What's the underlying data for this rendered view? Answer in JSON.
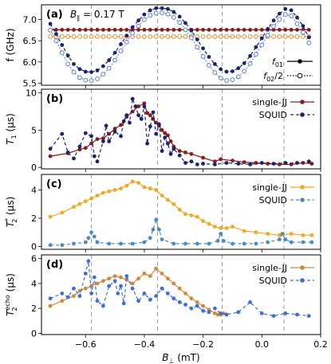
{
  "chart_data": [
    {
      "type": "line",
      "panel_label": "(a)",
      "annotation": "B ∥ = 0.17 T",
      "annotation_main": "B",
      "annotation_sub": "∥",
      "annotation_rest": " = 0.17 T",
      "ylabel": "f (GHz)",
      "xlim": [
        -0.75,
        0.2
      ],
      "ylim": [
        5.45,
        7.35
      ],
      "yticks": [
        5.5,
        6.0,
        6.5,
        7.0
      ],
      "xticks": [
        -0.6,
        -0.4,
        -0.2,
        0.0,
        0.2
      ],
      "legend_placement": "bottom-right",
      "series": [
        {
          "name": "f01",
          "name_main": "f",
          "name_sub": "01",
          "color": "#8b1a1a",
          "marker": "filled",
          "dash": "solid",
          "x": [
            -0.72,
            -0.7,
            -0.68,
            -0.66,
            -0.64,
            -0.62,
            -0.6,
            -0.58,
            -0.56,
            -0.54,
            -0.52,
            -0.5,
            -0.48,
            -0.46,
            -0.44,
            -0.42,
            -0.4,
            -0.38,
            -0.36,
            -0.34,
            -0.32,
            -0.3,
            -0.28,
            -0.26,
            -0.24,
            -0.22,
            -0.2,
            -0.18,
            -0.16,
            -0.14,
            -0.12,
            -0.1,
            -0.08,
            -0.06,
            -0.04,
            -0.02,
            0.0,
            0.02,
            0.04,
            0.06,
            0.08,
            0.1,
            0.12,
            0.14,
            0.16
          ],
          "y": [
            6.76,
            6.76,
            6.76,
            6.76,
            6.76,
            6.76,
            6.76,
            6.76,
            6.76,
            6.76,
            6.76,
            6.76,
            6.76,
            6.76,
            6.76,
            6.76,
            6.76,
            6.76,
            6.76,
            6.76,
            6.76,
            6.76,
            6.76,
            6.76,
            6.76,
            6.76,
            6.76,
            6.76,
            6.76,
            6.76,
            6.76,
            6.76,
            6.76,
            6.76,
            6.76,
            6.76,
            6.76,
            6.76,
            6.76,
            6.76,
            6.76,
            6.76,
            6.76,
            6.76,
            6.76
          ]
        },
        {
          "name": "f02/2",
          "name_main": "f",
          "name_sub": "02",
          "name_rest": "/2",
          "color": "#e8892a",
          "marker": "open",
          "dash": "dotted",
          "x": [
            -0.72,
            -0.7,
            -0.68,
            -0.66,
            -0.64,
            -0.62,
            -0.6,
            -0.58,
            -0.56,
            -0.54,
            -0.52,
            -0.5,
            -0.48,
            -0.46,
            -0.44,
            -0.42,
            -0.4,
            -0.38,
            -0.36,
            -0.34,
            -0.32,
            -0.3,
            -0.28,
            -0.26,
            -0.24,
            -0.22,
            -0.2,
            -0.18,
            -0.16,
            -0.14,
            -0.12,
            -0.1,
            -0.08,
            -0.06,
            -0.04,
            -0.02,
            0.0,
            0.02,
            0.04,
            0.06,
            0.08,
            0.1,
            0.12,
            0.14,
            0.16
          ],
          "y": [
            6.6,
            6.6,
            6.6,
            6.6,
            6.6,
            6.6,
            6.6,
            6.6,
            6.6,
            6.6,
            6.6,
            6.6,
            6.6,
            6.6,
            6.6,
            6.6,
            6.6,
            6.6,
            6.6,
            6.6,
            6.6,
            6.6,
            6.6,
            6.6,
            6.6,
            6.6,
            6.6,
            6.6,
            6.6,
            6.6,
            6.6,
            6.6,
            6.6,
            6.6,
            6.6,
            6.6,
            6.6,
            6.6,
            6.6,
            6.6,
            6.6,
            6.6,
            6.6,
            6.6,
            6.6
          ]
        },
        {
          "name": "SQUID f01",
          "color": "#1a2370",
          "marker": "filled",
          "dash": "dashed",
          "x": [
            -0.72,
            -0.7,
            -0.68,
            -0.66,
            -0.64,
            -0.62,
            -0.6,
            -0.58,
            -0.56,
            -0.54,
            -0.52,
            -0.5,
            -0.48,
            -0.46,
            -0.44,
            -0.42,
            -0.4,
            -0.38,
            -0.36,
            -0.34,
            -0.32,
            -0.3,
            -0.28,
            -0.26,
            -0.24,
            -0.22,
            -0.2,
            -0.18,
            -0.16,
            -0.14,
            -0.12,
            -0.1,
            -0.08,
            -0.06,
            -0.04,
            -0.02,
            0.0,
            0.02,
            0.04,
            0.06,
            0.08,
            0.1,
            0.12,
            0.14,
            0.16
          ],
          "y": [
            6.9,
            6.66,
            6.4,
            6.15,
            5.95,
            5.83,
            5.77,
            5.76,
            5.8,
            5.9,
            6.04,
            6.22,
            6.42,
            6.62,
            6.82,
            6.98,
            7.12,
            7.22,
            7.27,
            7.27,
            7.25,
            7.18,
            7.07,
            6.92,
            6.74,
            6.53,
            6.32,
            6.12,
            5.95,
            5.83,
            5.77,
            5.78,
            5.85,
            5.97,
            6.14,
            6.35,
            6.56,
            6.78,
            6.98,
            7.14,
            7.25,
            7.22,
            7.05,
            6.85,
            6.58
          ]
        },
        {
          "name": "SQUID f02/2",
          "color": "#5b7fd6",
          "marker": "open",
          "dash": "dotted",
          "x": [
            -0.72,
            -0.7,
            -0.68,
            -0.66,
            -0.64,
            -0.62,
            -0.6,
            -0.58,
            -0.56,
            -0.54,
            -0.52,
            -0.5,
            -0.48,
            -0.46,
            -0.44,
            -0.42,
            -0.4,
            -0.38,
            -0.36,
            -0.34,
            -0.32,
            -0.3,
            -0.28,
            -0.26,
            -0.24,
            -0.22,
            -0.2,
            -0.18,
            -0.16,
            -0.14,
            -0.12,
            -0.1,
            -0.08,
            -0.06,
            -0.04,
            -0.02,
            0.0,
            0.02,
            0.04,
            0.06,
            0.08,
            0.1,
            0.12,
            0.14,
            0.16
          ],
          "y": [
            6.75,
            6.5,
            6.22,
            5.95,
            5.76,
            5.63,
            5.57,
            5.56,
            5.6,
            5.71,
            5.85,
            6.04,
            6.26,
            6.47,
            6.68,
            6.85,
            7.0,
            7.1,
            7.15,
            7.16,
            7.13,
            7.05,
            6.93,
            6.76,
            6.57,
            6.35,
            6.13,
            5.92,
            5.75,
            5.62,
            5.56,
            5.58,
            5.65,
            5.78,
            5.96,
            6.18,
            6.4,
            6.63,
            6.84,
            7.01,
            7.12,
            7.09,
            6.9,
            6.7,
            6.45
          ]
        }
      ]
    },
    {
      "type": "line",
      "panel_label": "(b)",
      "ylabel": "T1 (μs)",
      "ylabel_main": "T",
      "ylabel_sub": "1",
      "ylabel_rest": " (μs)",
      "xlim": [
        -0.75,
        0.2
      ],
      "ylim": [
        -0.2,
        10.5
      ],
      "yticks": [
        0,
        5,
        10
      ],
      "legend_placement": "top-right",
      "series": [
        {
          "name": "single-JJ",
          "color": "#8b1a1a",
          "marker": "filled",
          "dash": "solid",
          "x": [
            -0.72,
            -0.66,
            -0.62,
            -0.6,
            -0.58,
            -0.56,
            -0.54,
            -0.52,
            -0.5,
            -0.48,
            -0.46,
            -0.44,
            -0.42,
            -0.4,
            -0.39,
            -0.38,
            -0.37,
            -0.36,
            -0.35,
            -0.34,
            -0.33,
            -0.32,
            -0.31,
            -0.3,
            -0.28,
            -0.26,
            -0.24,
            -0.2,
            -0.16,
            -0.14,
            -0.1,
            -0.06,
            -0.02,
            0.02,
            0.06,
            0.1,
            0.14,
            0.17
          ],
          "y": [
            1.5,
            1.9,
            2.4,
            2.6,
            3.2,
            3.8,
            3.9,
            4.5,
            5.2,
            5.7,
            6.8,
            7.5,
            8.2,
            8.6,
            7.3,
            7.0,
            6.5,
            6.0,
            5.6,
            5.0,
            4.6,
            4.3,
            3.5,
            2.8,
            2.2,
            2.0,
            1.8,
            1.3,
            0.8,
            1.1,
            0.9,
            0.7,
            0.6,
            0.5,
            0.4,
            0.4,
            0.6,
            0.5
          ]
        },
        {
          "name": "SQUID",
          "color": "#1a2370",
          "marker": "filled",
          "dash": "dashed",
          "x": [
            -0.72,
            -0.68,
            -0.66,
            -0.64,
            -0.62,
            -0.6,
            -0.58,
            -0.57,
            -0.56,
            -0.54,
            -0.53,
            -0.52,
            -0.5,
            -0.48,
            -0.47,
            -0.46,
            -0.45,
            -0.44,
            -0.43,
            -0.42,
            -0.41,
            -0.4,
            -0.39,
            -0.38,
            -0.37,
            -0.36,
            -0.35,
            -0.34,
            -0.33,
            -0.32,
            -0.31,
            -0.3,
            -0.28,
            -0.26,
            -0.24,
            -0.22,
            -0.2,
            -0.16,
            -0.12,
            -0.08,
            -0.04,
            0.0,
            0.04,
            0.08,
            0.12,
            0.16
          ],
          "y": [
            2.5,
            4.5,
            2.0,
            1.2,
            2.8,
            4.6,
            4.2,
            1.5,
            0.8,
            3.5,
            5.6,
            3.5,
            4.8,
            4.2,
            6.2,
            7.0,
            6.0,
            9.2,
            8.2,
            7.0,
            6.5,
            8.2,
            3.2,
            5.5,
            7.4,
            4.5,
            5.8,
            2.2,
            4.0,
            3.2,
            1.8,
            2.5,
            1.6,
            0.6,
            0.8,
            0.4,
            0.5,
            0.4,
            0.6,
            0.5,
            0.4,
            0.6,
            0.5,
            0.6,
            0.6,
            0.8
          ]
        }
      ]
    },
    {
      "type": "line",
      "panel_label": "(c)",
      "ylabel": "T2* (μs)",
      "ylabel_main": "T",
      "ylabel_sub": "2",
      "ylabel_sup": "*",
      "ylabel_rest": " (μs)",
      "xlim": [
        -0.75,
        0.2
      ],
      "ylim": [
        -0.2,
        5.1
      ],
      "yticks": [
        0,
        2,
        4
      ],
      "legend_placement": "top-right",
      "series": [
        {
          "name": "single-JJ",
          "color": "#f5a623",
          "marker": "filled",
          "dash": "solid",
          "x": [
            -0.72,
            -0.68,
            -0.64,
            -0.62,
            -0.6,
            -0.58,
            -0.56,
            -0.54,
            -0.52,
            -0.5,
            -0.48,
            -0.46,
            -0.44,
            -0.42,
            -0.4,
            -0.38,
            -0.36,
            -0.34,
            -0.32,
            -0.3,
            -0.28,
            -0.26,
            -0.24,
            -0.22,
            -0.2,
            -0.18,
            -0.16,
            -0.14,
            -0.12,
            -0.1,
            -0.06,
            -0.02,
            0.02,
            0.06,
            0.1,
            0.14,
            0.17
          ],
          "y": [
            2.1,
            2.4,
            2.8,
            3.0,
            3.2,
            3.4,
            3.6,
            3.8,
            3.9,
            4.0,
            4.1,
            4.3,
            4.6,
            4.5,
            4.2,
            4.1,
            4.0,
            3.6,
            3.3,
            3.0,
            2.6,
            2.3,
            2.2,
            2.1,
            1.8,
            1.6,
            1.4,
            1.3,
            1.3,
            1.4,
            1.1,
            1.0,
            0.9,
            0.8,
            0.9,
            0.8,
            0.8
          ]
        },
        {
          "name": "SQUID",
          "color": "#4a8ac2",
          "marker": "filled",
          "dash": "dashed",
          "x": [
            -0.72,
            -0.68,
            -0.64,
            -0.6,
            -0.59,
            -0.58,
            -0.57,
            -0.56,
            -0.52,
            -0.48,
            -0.44,
            -0.4,
            -0.38,
            -0.37,
            -0.36,
            -0.35,
            -0.34,
            -0.3,
            -0.26,
            -0.22,
            -0.18,
            -0.15,
            -0.14,
            -0.13,
            -0.1,
            -0.06,
            -0.02,
            0.02,
            0.06,
            0.07,
            0.08,
            0.1,
            0.14,
            0.17
          ],
          "y": [
            0.1,
            0.1,
            0.2,
            0.3,
            0.6,
            1.0,
            0.7,
            0.3,
            0.2,
            0.2,
            0.2,
            0.3,
            0.6,
            1.2,
            1.9,
            1.2,
            0.5,
            0.2,
            0.2,
            0.2,
            0.2,
            0.4,
            0.9,
            0.4,
            0.2,
            0.2,
            0.2,
            0.3,
            0.5,
            0.9,
            0.5,
            0.3,
            0.3,
            0.3
          ]
        }
      ]
    },
    {
      "type": "line",
      "panel_label": "(d)",
      "ylabel": "T2echo (μs)",
      "ylabel_main": "T",
      "ylabel_sub": "2",
      "ylabel_sup": "echo",
      "ylabel_rest": " (μs)",
      "xlabel": "B⊥ (mT)",
      "xlabel_main": "B",
      "xlabel_sub": "⊥",
      "xlabel_rest": " (mT)",
      "xlim": [
        -0.75,
        0.2
      ],
      "ylim": [
        -0.1,
        6.3
      ],
      "yticks": [
        0,
        2,
        4,
        6
      ],
      "xticks": [
        -0.6,
        -0.4,
        -0.2,
        0.0,
        0.2
      ],
      "xticklabels": [
        "−0.6",
        "−0.4",
        "−0.2",
        "0.0",
        "0.2"
      ],
      "legend_placement": "top-right",
      "series": [
        {
          "name": "single-JJ",
          "color": "#d4893a",
          "marker": "filled",
          "dash": "solid",
          "x": [
            -0.72,
            -0.68,
            -0.64,
            -0.62,
            -0.6,
            -0.58,
            -0.56,
            -0.54,
            -0.52,
            -0.5,
            -0.48,
            -0.46,
            -0.44,
            -0.42,
            -0.4,
            -0.38,
            -0.36,
            -0.34,
            -0.32,
            -0.3,
            -0.28,
            -0.26,
            -0.24,
            -0.22,
            -0.2,
            -0.18,
            -0.16,
            -0.15,
            -0.14,
            -0.13,
            -0.12
          ],
          "y": [
            2.2,
            2.6,
            3.0,
            3.4,
            3.6,
            3.8,
            4.0,
            4.2,
            4.4,
            4.6,
            4.5,
            4.3,
            4.0,
            4.4,
            4.8,
            4.6,
            5.2,
            4.8,
            4.4,
            4.0,
            3.6,
            3.2,
            2.8,
            2.5,
            2.2,
            1.9,
            1.6,
            1.5,
            1.5,
            1.6,
            1.5
          ]
        },
        {
          "name": "SQUID",
          "color": "#3e6fd8",
          "marker": "filled",
          "dash": "dashed",
          "x": [
            -0.72,
            -0.68,
            -0.66,
            -0.64,
            -0.62,
            -0.6,
            -0.59,
            -0.58,
            -0.57,
            -0.56,
            -0.54,
            -0.52,
            -0.5,
            -0.49,
            -0.48,
            -0.47,
            -0.46,
            -0.44,
            -0.42,
            -0.4,
            -0.38,
            -0.36,
            -0.34,
            -0.32,
            -0.3,
            -0.28,
            -0.26,
            -0.24,
            -0.22,
            -0.2,
            -0.18,
            -0.16,
            -0.14,
            -0.12,
            -0.08,
            -0.04,
            0.0,
            0.04,
            0.08,
            0.12,
            0.16
          ],
          "y": [
            2.8,
            3.2,
            2.9,
            3.6,
            3.0,
            4.8,
            5.8,
            3.2,
            4.5,
            2.6,
            2.2,
            3.8,
            4.2,
            3.2,
            3.8,
            2.4,
            4.6,
            3.6,
            2.6,
            3.2,
            2.7,
            3.0,
            3.6,
            3.2,
            2.8,
            2.5,
            2.3,
            2.0,
            2.2,
            1.8,
            1.7,
            2.0,
            1.6,
            1.5,
            1.7,
            2.5,
            1.6,
            1.4,
            1.6,
            1.5,
            1.4
          ]
        }
      ]
    }
  ],
  "vlines_x": [
    -0.58,
    -0.355,
    -0.135,
    0.075
  ]
}
